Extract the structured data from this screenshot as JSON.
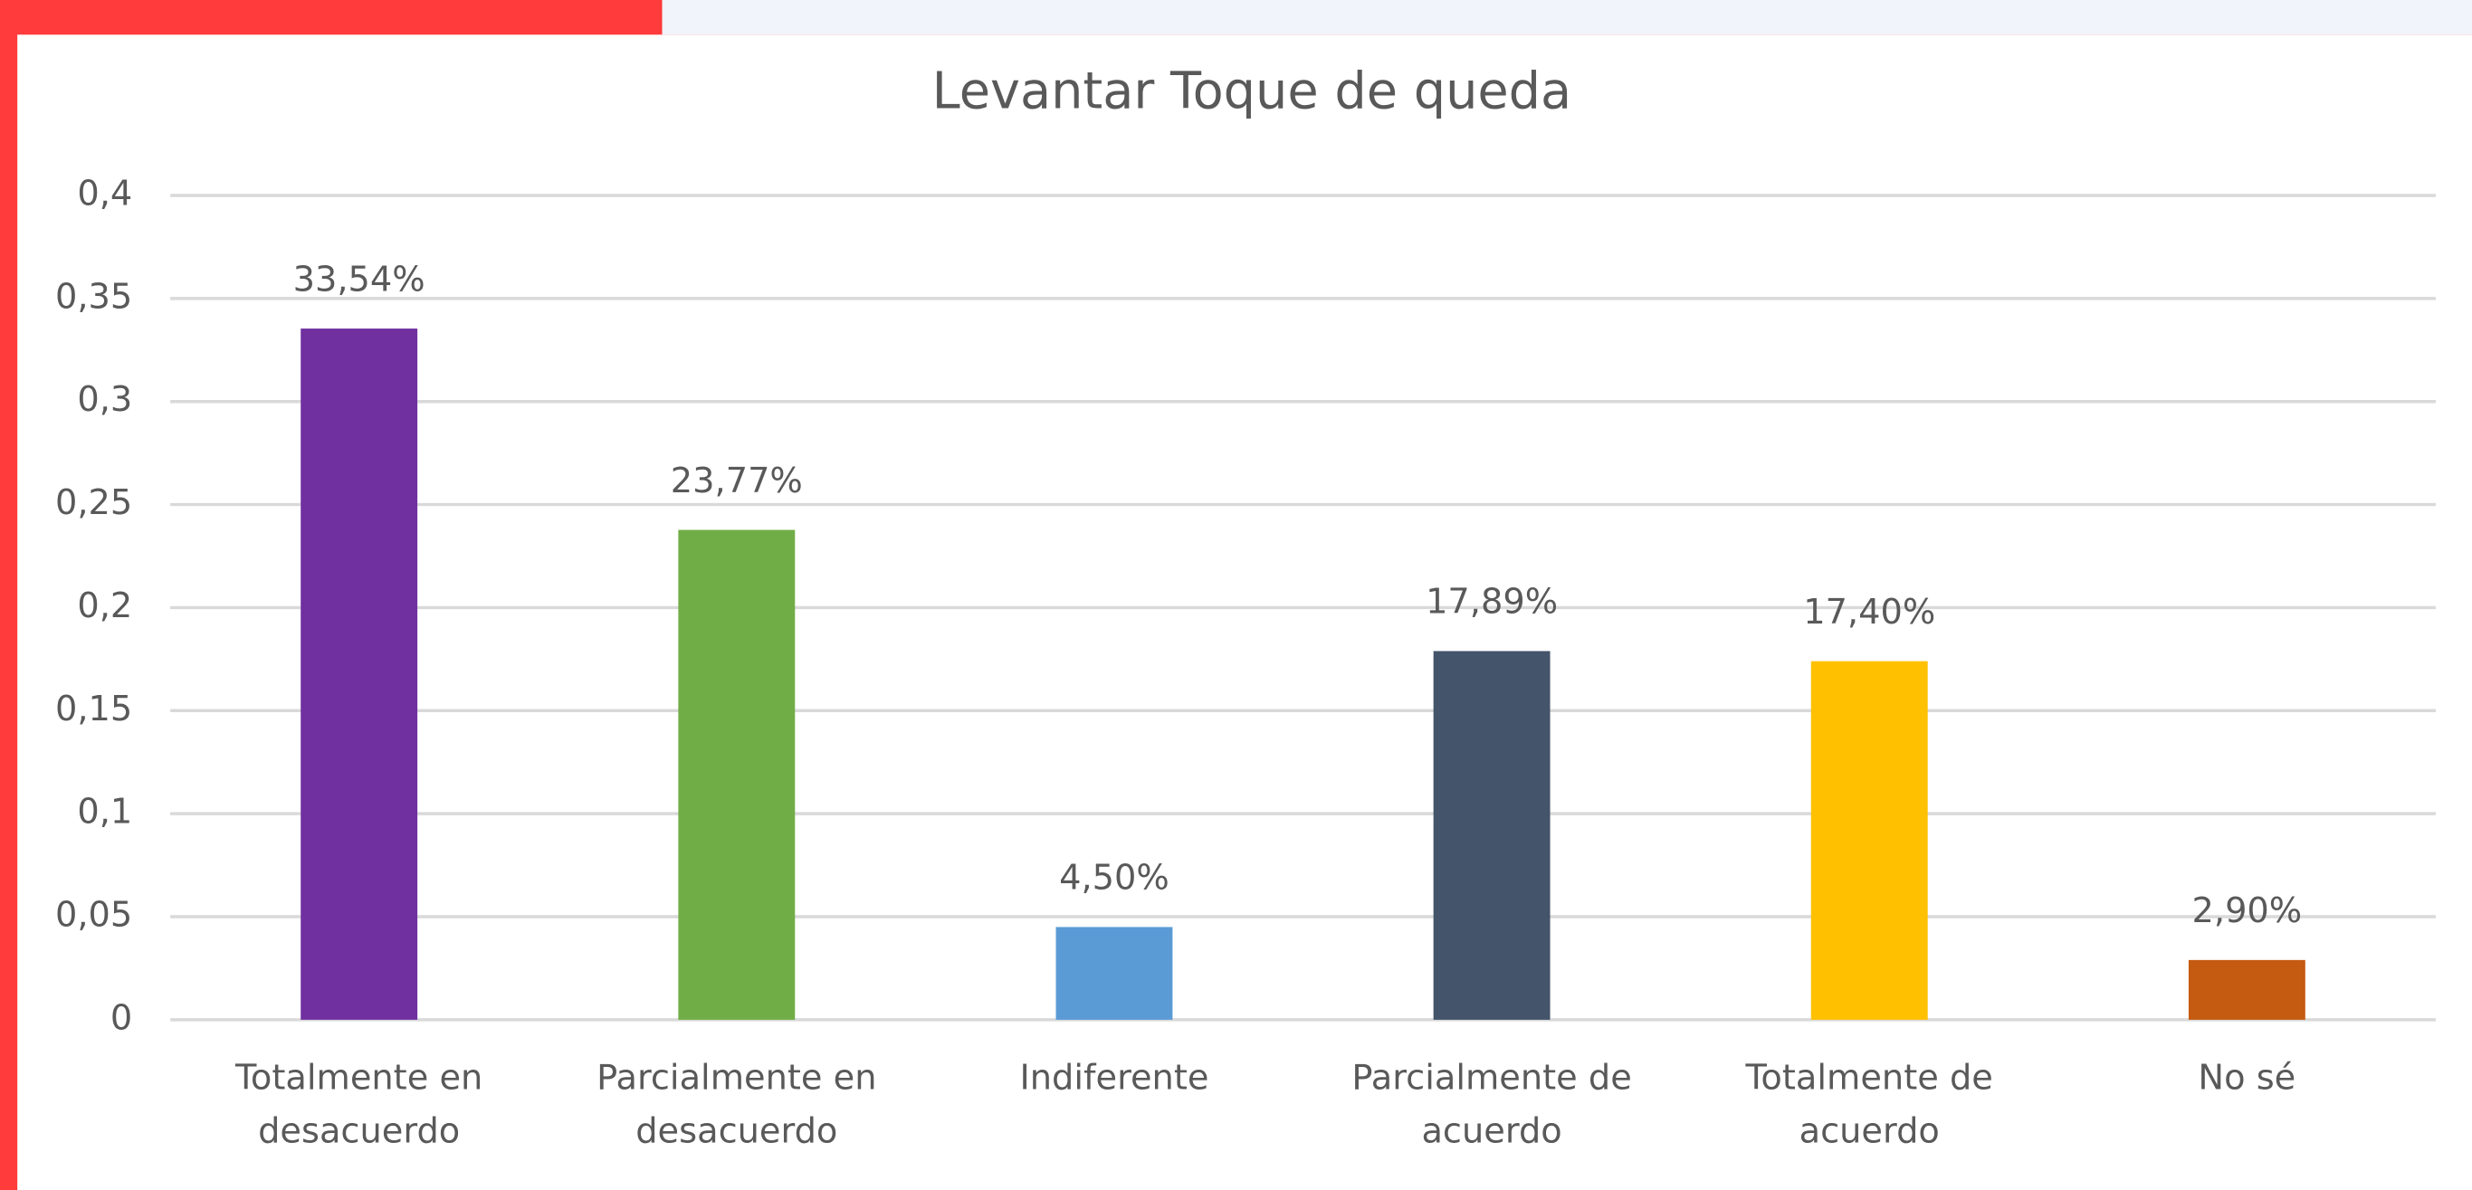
{
  "chart_data": {
    "type": "bar",
    "title": "Levantar Toque de queda",
    "categories": [
      "Totalmente en desacuerdo",
      "Parcialmente en desacuerdo",
      "Indiferente",
      "Parcialmente de acuerdo",
      "Totalmente de acuerdo",
      "No sé"
    ],
    "values": [
      0.3354,
      0.2377,
      0.045,
      0.1789,
      0.174,
      0.029
    ],
    "value_labels": [
      "33,54%",
      "23,77%",
      "4,50%",
      "17,89%",
      "17,40%",
      "2,90%"
    ],
    "colors": [
      "#7030a0",
      "#70ad47",
      "#5b9bd5",
      "#44546a",
      "#ffc000",
      "#c55a11"
    ],
    "ylim": [
      0,
      0.4
    ],
    "yticks": [
      0,
      {
        "value": 0.05,
        "label": "0,05"
      },
      {
        "value": 0.1,
        "label": "0,1"
      },
      {
        "value": 0.15,
        "label": "0,15"
      },
      {
        "value": 0.2,
        "label": "0,2"
      },
      {
        "value": 0.25,
        "label": "0,25"
      },
      {
        "value": 0.3,
        "label": "0,3"
      },
      {
        "value": 0.35,
        "label": "0,35"
      },
      {
        "value": 0.4,
        "label": "0,4"
      }
    ],
    "grid": true
  }
}
